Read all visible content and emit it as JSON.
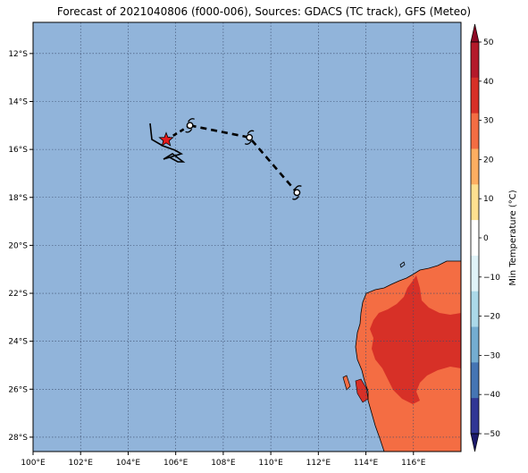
{
  "title": "Forecast of 2021040806 (f000-006), Sources: GDACS (TC track), GFS (Meteo)",
  "map": {
    "lon_range": [
      100,
      118
    ],
    "lat_range": [
      -28.6,
      -10.7
    ],
    "x_ticks": [
      "100°E",
      "102°E",
      "104°E",
      "106°E",
      "108°E",
      "110°E",
      "112°E",
      "114°E",
      "116°E"
    ],
    "y_ticks": [
      "12°S",
      "14°S",
      "16°S",
      "18°S",
      "20°S",
      "22°S",
      "24°S",
      "26°S",
      "28°S"
    ],
    "grid": "dotted",
    "ocean_color": "#91b4da",
    "storm_marker": {
      "type": "star",
      "color": "#e41a1c",
      "lon": 105.6,
      "lat": -15.6
    },
    "forecast_track": [
      {
        "lon": 106.6,
        "lat": -15.0
      },
      {
        "lon": 109.1,
        "lat": -15.5
      },
      {
        "lon": 111.1,
        "lat": -17.8
      }
    ],
    "past_track_color": "#000000",
    "forecast_track_style": "dashed"
  },
  "colorbar": {
    "label": "Min Temperature (°C)",
    "ticks": [
      "50",
      "40",
      "30",
      "20",
      "10",
      "0",
      "−10",
      "−20",
      "−30",
      "−40",
      "−50"
    ],
    "colors": [
      "#8e0a26",
      "#b41a2a",
      "#d73027",
      "#f46d43",
      "#fdae61",
      "#fee090",
      "#ffffff",
      "#e0f3f8",
      "#abd9e9",
      "#74add1",
      "#4575b4",
      "#313695",
      "#1c1a6b"
    ]
  }
}
